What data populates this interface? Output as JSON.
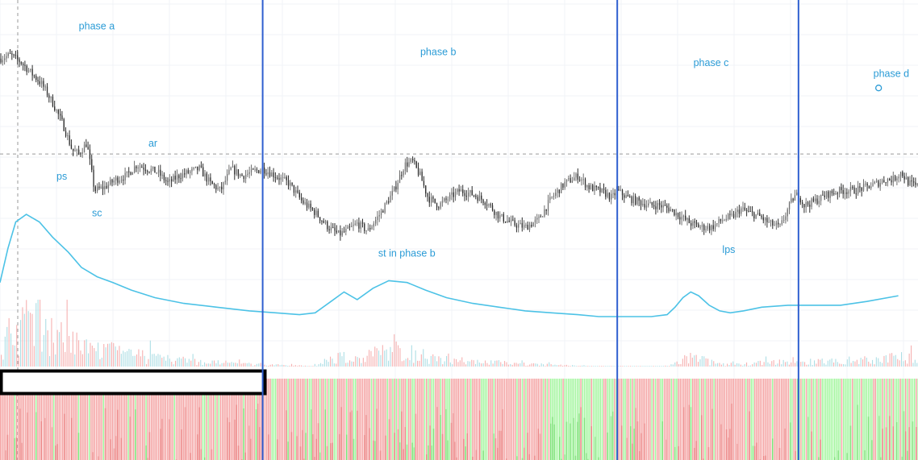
{
  "chart_data": {
    "type": "candlestick",
    "title": "",
    "xlabel": "",
    "ylabel": "",
    "ylim": [
      0,
      100
    ],
    "grid": true,
    "legend": "none",
    "reference_level": 58,
    "annotations": [
      {
        "text": "phase a",
        "x": 60,
        "y": 92
      },
      {
        "text": "phase b",
        "x": 320,
        "y": 85
      },
      {
        "text": "phase c",
        "x": 528,
        "y": 82
      },
      {
        "text": "phase d",
        "x": 665,
        "y": 79
      },
      {
        "text": "ps",
        "x": 43,
        "y": 51
      },
      {
        "text": "ar",
        "x": 113,
        "y": 60
      },
      {
        "text": "sc",
        "x": 70,
        "y": 41
      },
      {
        "text": "st in phase b",
        "x": 288,
        "y": 30
      },
      {
        "text": "lps",
        "x": 550,
        "y": 31
      }
    ],
    "marker": {
      "symbol": "circle",
      "x": 669,
      "y": 76
    },
    "phase_boundaries_x": [
      200,
      470,
      608
    ],
    "close_series": {
      "x": [
        0,
        8,
        16,
        24,
        32,
        40,
        48,
        55,
        60,
        66,
        72,
        80,
        88,
        96,
        104,
        112,
        120,
        128,
        136,
        144,
        152,
        160,
        168,
        176,
        184,
        192,
        200,
        210,
        220,
        230,
        240,
        250,
        258,
        264,
        272,
        280,
        290,
        300,
        308,
        314,
        320,
        326,
        334,
        342,
        350,
        360,
        370,
        380,
        390,
        400,
        410,
        420,
        430,
        440,
        448,
        456,
        462,
        466,
        470,
        478,
        486,
        494,
        502,
        510,
        518,
        526,
        534,
        542,
        550,
        558,
        564,
        570,
        578,
        586,
        594,
        600,
        604,
        608,
        612,
        620,
        630,
        640,
        650,
        660,
        668,
        674,
        680,
        686,
        692,
        699
      ],
      "close": [
        84,
        85,
        83,
        80,
        77,
        72,
        66,
        59,
        58,
        61,
        48,
        49,
        51,
        52,
        55,
        54,
        53,
        50,
        52,
        53,
        54,
        50,
        48,
        54,
        52,
        53,
        54,
        52,
        50,
        45,
        42,
        38,
        36,
        37,
        39,
        37,
        42,
        48,
        55,
        56,
        52,
        46,
        44,
        46,
        48,
        47,
        45,
        41,
        39,
        38,
        40,
        46,
        50,
        52,
        49,
        48,
        47,
        46,
        48,
        46,
        45,
        44,
        44,
        43,
        41,
        39,
        38,
        38,
        40,
        41,
        43,
        42,
        41,
        39,
        38,
        43,
        46,
        47,
        44,
        45,
        47,
        48,
        48,
        49,
        50,
        51,
        51,
        53,
        50,
        49
      ]
    },
    "volume_ma_series": {
      "x": [
        0,
        6,
        12,
        20,
        30,
        40,
        52,
        62,
        74,
        86,
        100,
        118,
        140,
        165,
        190,
        210,
        228,
        240,
        252,
        262,
        272,
        284,
        296,
        310,
        324,
        340,
        360,
        380,
        400,
        420,
        440,
        456,
        470,
        482,
        496,
        508,
        514,
        520,
        526,
        532,
        540,
        548,
        556,
        566,
        580,
        600,
        620,
        640,
        660,
        684
      ],
      "y": [
        18,
        36,
        50,
        54,
        50,
        42,
        34,
        26,
        21,
        18,
        14,
        10,
        7,
        5,
        3,
        2,
        1,
        2,
        8,
        13,
        9,
        15,
        19,
        18,
        14,
        10,
        7,
        5,
        3,
        2,
        1,
        0,
        0,
        0,
        0,
        1,
        5,
        10,
        13,
        11,
        6,
        3,
        2,
        3,
        5,
        6,
        6,
        6,
        8,
        11
      ]
    },
    "delta_regime_note": "bottom pane: mostly red early, mostly green late",
    "x_domain": [
      0,
      699
    ]
  }
}
